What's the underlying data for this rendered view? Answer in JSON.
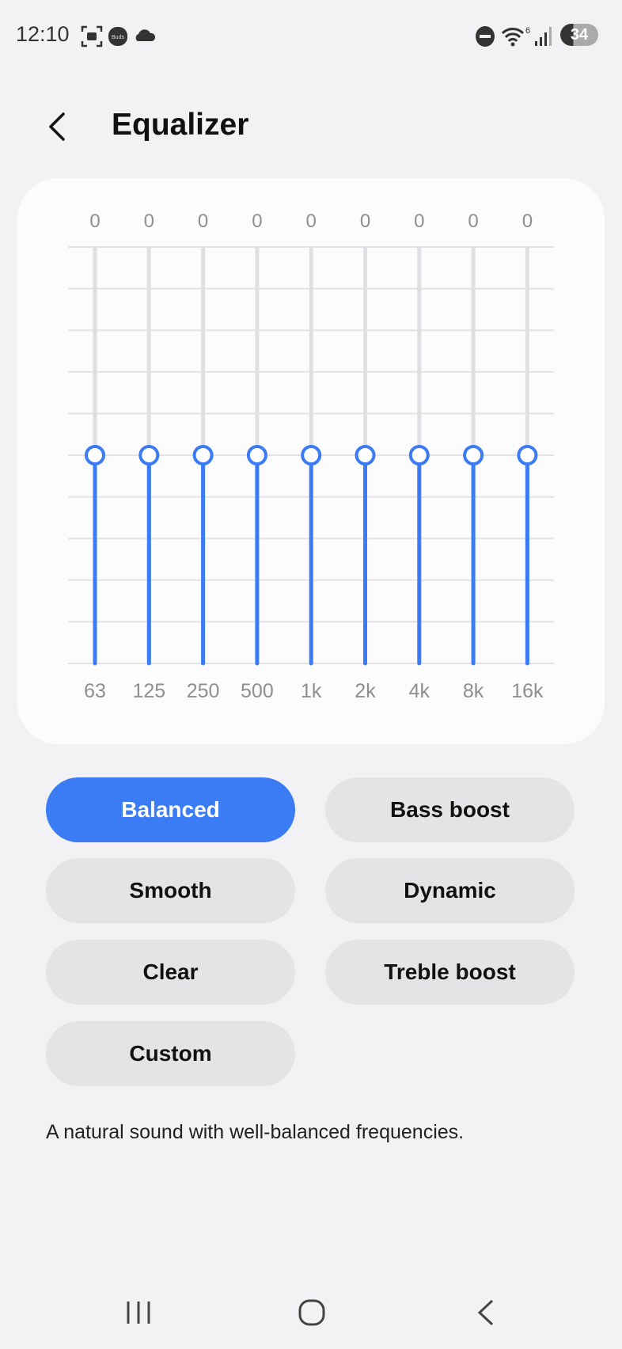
{
  "status_bar": {
    "time": "12:10",
    "battery": "34",
    "wifi_badge": "6",
    "buds_label": "Buds",
    "icons": [
      "screenshot-icon",
      "buds-icon",
      "cloud-icon",
      "do-not-disturb-icon",
      "wifi-icon",
      "signal-icon",
      "battery-icon"
    ]
  },
  "header": {
    "title": "Equalizer",
    "back_icon": "chevron-left-icon"
  },
  "chart_data": {
    "type": "bar",
    "categories": [
      "63",
      "125",
      "250",
      "500",
      "1k",
      "2k",
      "4k",
      "8k",
      "16k"
    ],
    "values": [
      0,
      0,
      0,
      0,
      0,
      0,
      0,
      0,
      0
    ],
    "value_labels": [
      "0",
      "0",
      "0",
      "0",
      "0",
      "0",
      "0",
      "0",
      "0"
    ],
    "grid": true,
    "accent_color": "#3b7bf4"
  },
  "presets": [
    {
      "label": "Balanced",
      "selected": true
    },
    {
      "label": "Bass boost",
      "selected": false
    },
    {
      "label": "Smooth",
      "selected": false
    },
    {
      "label": "Dynamic",
      "selected": false
    },
    {
      "label": "Clear",
      "selected": false
    },
    {
      "label": "Treble boost",
      "selected": false
    },
    {
      "label": "Custom",
      "selected": false
    }
  ],
  "description": "A natural sound with well-balanced frequencies.",
  "nav_bar": {
    "icons": [
      "recent-apps-icon",
      "home-icon",
      "back-icon"
    ]
  }
}
